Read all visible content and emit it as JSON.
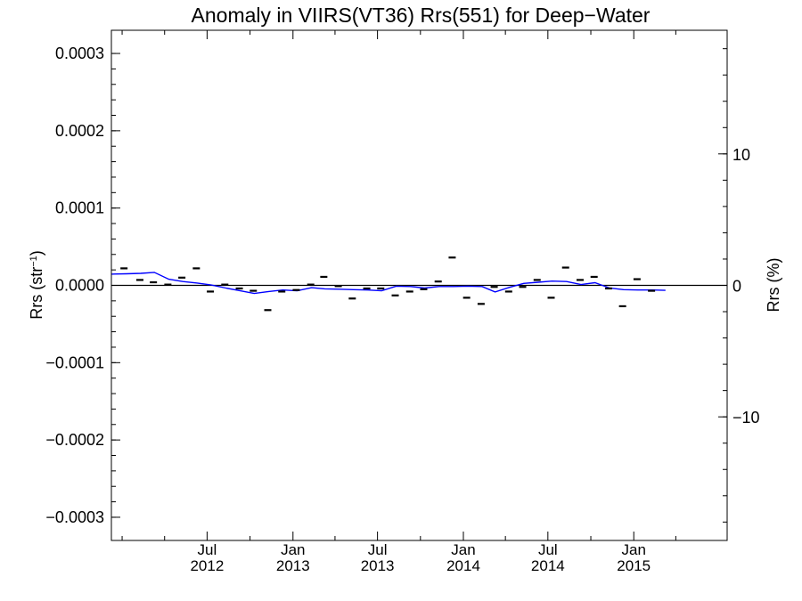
{
  "chart_data": {
    "type": "line",
    "title": "Anomaly in VIIRS(VT36) Rrs(551) for Deep−Water",
    "ylabel_left": "Rrs (str",
    "ylabel_left_sup": "−1",
    "ylabel_left_close": ")",
    "ylabel_right": "Rrs (%)",
    "y_left_lim": [
      -0.00033,
      0.00033
    ],
    "y_right_lim": [
      -19.4,
      19.4
    ],
    "x_lim": [
      "2011-12-09",
      "2015-07-20"
    ],
    "y_left_ticks": [
      {
        "value": 0.0003,
        "label": "0.0003"
      },
      {
        "value": 0.0002,
        "label": "0.0002"
      },
      {
        "value": 0.0001,
        "label": "0.0001"
      },
      {
        "value": 0.0,
        "label": "0.0000"
      },
      {
        "value": -0.0001,
        "label": "−0.0001"
      },
      {
        "value": -0.0002,
        "label": "−0.0002"
      },
      {
        "value": -0.0003,
        "label": "−0.0003"
      }
    ],
    "y_right_ticks": [
      {
        "value": 10,
        "label": "10"
      },
      {
        "value": 0,
        "label": "0"
      },
      {
        "value": -10,
        "label": "−10"
      }
    ],
    "x_ticks": [
      {
        "date": "2012-07-01",
        "month": "Jul",
        "year": "2012"
      },
      {
        "date": "2013-01-01",
        "month": "Jan",
        "year": "2013"
      },
      {
        "date": "2013-07-01",
        "month": "Jul",
        "year": "2013"
      },
      {
        "date": "2014-01-01",
        "month": "Jan",
        "year": "2014"
      },
      {
        "date": "2014-07-01",
        "month": "Jul",
        "year": "2014"
      },
      {
        "date": "2015-01-01",
        "month": "Jan",
        "year": "2015"
      }
    ],
    "points": [
      {
        "date": "2012-01-05",
        "y": 2.2e-05
      },
      {
        "date": "2012-02-08",
        "y": 7e-06
      },
      {
        "date": "2012-03-08",
        "y": 4e-06
      },
      {
        "date": "2012-04-08",
        "y": 1e-06
      },
      {
        "date": "2012-05-08",
        "y": 1e-05
      },
      {
        "date": "2012-06-08",
        "y": 2.2e-05
      },
      {
        "date": "2012-07-08",
        "y": -8e-06
      },
      {
        "date": "2012-08-08",
        "y": 1e-06
      },
      {
        "date": "2012-09-08",
        "y": -4e-06
      },
      {
        "date": "2012-10-08",
        "y": -7e-06
      },
      {
        "date": "2012-11-08",
        "y": -3.2e-05
      },
      {
        "date": "2012-12-08",
        "y": -8e-06
      },
      {
        "date": "2013-01-08",
        "y": -6e-06
      },
      {
        "date": "2013-02-08",
        "y": 1e-06
      },
      {
        "date": "2013-03-08",
        "y": 1.1e-05
      },
      {
        "date": "2013-04-08",
        "y": -1e-06
      },
      {
        "date": "2013-05-08",
        "y": -1.7e-05
      },
      {
        "date": "2013-06-08",
        "y": -4e-06
      },
      {
        "date": "2013-07-08",
        "y": -4e-06
      },
      {
        "date": "2013-08-08",
        "y": -1.3e-05
      },
      {
        "date": "2013-09-08",
        "y": -8e-06
      },
      {
        "date": "2013-10-08",
        "y": -5e-06
      },
      {
        "date": "2013-11-08",
        "y": 5e-06
      },
      {
        "date": "2013-12-08",
        "y": 3.6e-05
      },
      {
        "date": "2014-01-08",
        "y": -1.6e-05
      },
      {
        "date": "2014-02-08",
        "y": -2.4e-05
      },
      {
        "date": "2014-03-08",
        "y": -2e-06
      },
      {
        "date": "2014-04-08",
        "y": -8e-06
      },
      {
        "date": "2014-05-08",
        "y": -2e-06
      },
      {
        "date": "2014-06-08",
        "y": 7e-06
      },
      {
        "date": "2014-07-08",
        "y": -1.6e-05
      },
      {
        "date": "2014-08-08",
        "y": 2.3e-05
      },
      {
        "date": "2014-09-08",
        "y": 7e-06
      },
      {
        "date": "2014-10-08",
        "y": 1.1e-05
      },
      {
        "date": "2014-11-08",
        "y": -4e-06
      },
      {
        "date": "2014-12-08",
        "y": -2.7e-05
      },
      {
        "date": "2015-01-08",
        "y": 8e-06
      },
      {
        "date": "2015-02-08",
        "y": -7e-06
      }
    ],
    "series": [
      {
        "type": "line",
        "color": "#0000ff",
        "points": [
          {
            "date": "2011-12-09",
            "y": 1.45e-05
          },
          {
            "date": "2012-01-10",
            "y": 1.5e-05
          },
          {
            "date": "2012-02-10",
            "y": 1.55e-05
          },
          {
            "date": "2012-03-10",
            "y": 1.68e-05
          },
          {
            "date": "2012-04-10",
            "y": 8e-06
          },
          {
            "date": "2012-05-10",
            "y": 5e-06
          },
          {
            "date": "2012-06-10",
            "y": 3e-06
          },
          {
            "date": "2012-07-10",
            "y": 5e-07
          },
          {
            "date": "2012-08-10",
            "y": -3.5e-06
          },
          {
            "date": "2012-09-10",
            "y": -7e-06
          },
          {
            "date": "2012-10-10",
            "y": -1.05e-05
          },
          {
            "date": "2012-11-10",
            "y": -8e-06
          },
          {
            "date": "2012-12-10",
            "y": -6e-06
          },
          {
            "date": "2013-01-10",
            "y": -7e-06
          },
          {
            "date": "2013-02-10",
            "y": -3e-06
          },
          {
            "date": "2013-03-10",
            "y": -4.5e-06
          },
          {
            "date": "2013-04-10",
            "y": -5e-06
          },
          {
            "date": "2013-05-10",
            "y": -5.5e-06
          },
          {
            "date": "2013-06-10",
            "y": -6e-06
          },
          {
            "date": "2013-07-10",
            "y": -7e-06
          },
          {
            "date": "2013-08-10",
            "y": -1e-06
          },
          {
            "date": "2013-09-10",
            "y": -1.5e-06
          },
          {
            "date": "2013-10-10",
            "y": -3.5e-06
          },
          {
            "date": "2013-11-10",
            "y": -1.5e-06
          },
          {
            "date": "2013-12-10",
            "y": -1.5e-06
          },
          {
            "date": "2014-01-10",
            "y": -1e-06
          },
          {
            "date": "2014-02-10",
            "y": -1.5e-06
          },
          {
            "date": "2014-03-10",
            "y": -8.5e-06
          },
          {
            "date": "2014-04-10",
            "y": -2.5e-06
          },
          {
            "date": "2014-05-10",
            "y": 2.5e-06
          },
          {
            "date": "2014-06-10",
            "y": 4e-06
          },
          {
            "date": "2014-07-10",
            "y": 5.5e-06
          },
          {
            "date": "2014-08-10",
            "y": 5e-06
          },
          {
            "date": "2014-09-10",
            "y": 1e-06
          },
          {
            "date": "2014-10-10",
            "y": 3.5e-06
          },
          {
            "date": "2014-11-10",
            "y": -3.5e-06
          },
          {
            "date": "2014-12-10",
            "y": -5.5e-06
          },
          {
            "date": "2015-01-10",
            "y": -6e-06
          },
          {
            "date": "2015-02-10",
            "y": -6e-06
          },
          {
            "date": "2015-03-10",
            "y": -6.5e-06
          }
        ]
      }
    ],
    "zero_line": true,
    "grid": false,
    "legend": "none"
  }
}
